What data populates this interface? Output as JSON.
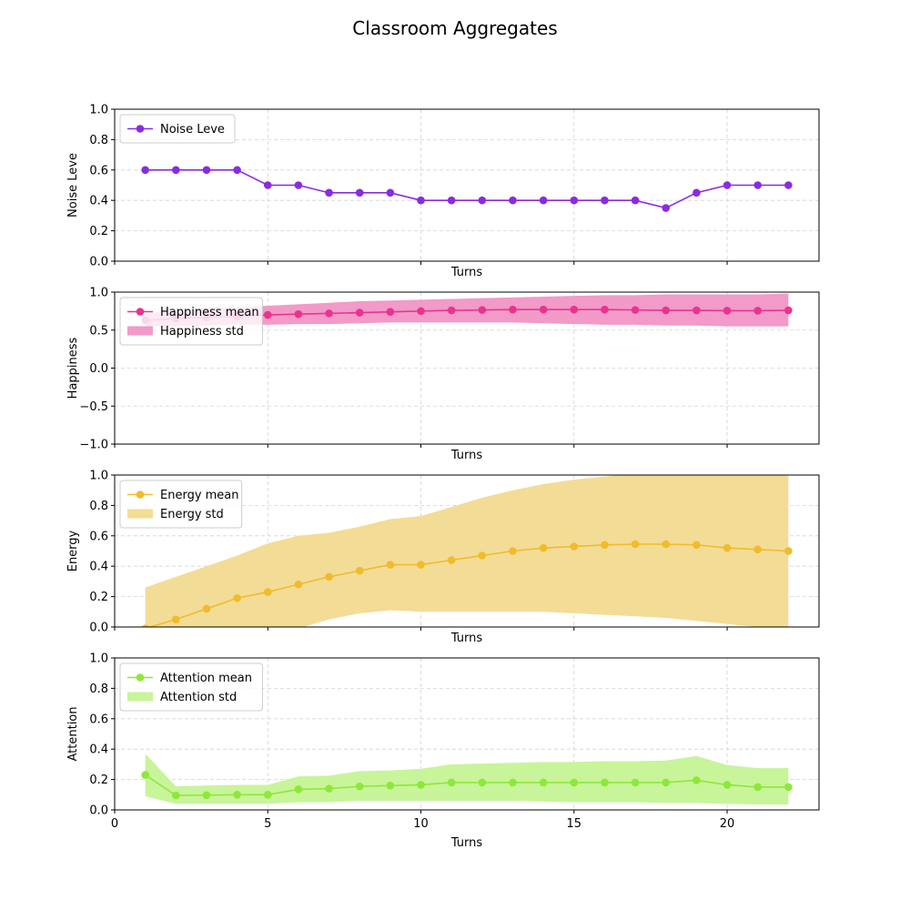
{
  "title": "Classroom Aggregates",
  "chart_data": [
    {
      "type": "line",
      "ylabel": "Noise Leve",
      "xlabel": "Turns",
      "xlim": [
        0,
        23
      ],
      "ylim": [
        0,
        1
      ],
      "yticks": [
        0.0,
        0.2,
        0.4,
        0.6,
        0.8,
        1.0
      ],
      "ytick_labels": [
        "0.0",
        "0.2",
        "0.4",
        "0.6",
        "0.8",
        "1.0"
      ],
      "xticks": [
        0,
        5,
        10,
        15,
        20
      ],
      "show_xtick_labels": false,
      "grid": true,
      "legend_position": "top-left",
      "color": "#8a2be2",
      "x": [
        1,
        2,
        3,
        4,
        5,
        6,
        7,
        8,
        9,
        10,
        11,
        12,
        13,
        14,
        15,
        16,
        17,
        18,
        19,
        20,
        21,
        22
      ],
      "series": [
        {
          "name": "Noise Leve",
          "kind": "line",
          "values": [
            0.6,
            0.6,
            0.6,
            0.6,
            0.5,
            0.5,
            0.45,
            0.45,
            0.45,
            0.4,
            0.4,
            0.4,
            0.4,
            0.4,
            0.4,
            0.4,
            0.4,
            0.35,
            0.45,
            0.5,
            0.5,
            0.5
          ]
        }
      ]
    },
    {
      "type": "line",
      "ylabel": "Happiness",
      "xlabel": "Turns",
      "xlim": [
        0,
        23
      ],
      "ylim": [
        -1,
        1
      ],
      "yticks": [
        -1.0,
        -0.5,
        0.0,
        0.5,
        1.0
      ],
      "ytick_labels": [
        "−1.0",
        "−0.5",
        "0.0",
        "0.5",
        "1.0"
      ],
      "xticks": [
        0,
        5,
        10,
        15,
        20
      ],
      "show_xtick_labels": false,
      "grid": true,
      "legend_position": "top-left",
      "color": "#e8348f",
      "band_color": "#f29ac8",
      "x": [
        1,
        2,
        3,
        4,
        5,
        6,
        7,
        8,
        9,
        10,
        11,
        12,
        13,
        14,
        15,
        16,
        17,
        18,
        19,
        20,
        21,
        22
      ],
      "series": [
        {
          "name": "Happiness mean",
          "kind": "line",
          "values": [
            0.63,
            0.65,
            0.67,
            0.68,
            0.7,
            0.71,
            0.72,
            0.73,
            0.74,
            0.75,
            0.76,
            0.765,
            0.77,
            0.77,
            0.77,
            0.77,
            0.765,
            0.76,
            0.76,
            0.755,
            0.755,
            0.76
          ]
        },
        {
          "name": "Happiness std",
          "kind": "band",
          "lower": [
            0.55,
            0.55,
            0.56,
            0.57,
            0.57,
            0.58,
            0.58,
            0.59,
            0.6,
            0.6,
            0.6,
            0.6,
            0.6,
            0.59,
            0.58,
            0.57,
            0.57,
            0.56,
            0.56,
            0.55,
            0.55,
            0.55
          ],
          "upper": [
            0.72,
            0.76,
            0.79,
            0.8,
            0.82,
            0.84,
            0.86,
            0.88,
            0.89,
            0.9,
            0.91,
            0.92,
            0.93,
            0.94,
            0.95,
            0.96,
            0.96,
            0.97,
            0.97,
            0.97,
            0.97,
            0.98
          ]
        }
      ]
    },
    {
      "type": "line",
      "ylabel": "Energy",
      "xlabel": "Turns",
      "xlim": [
        0,
        23
      ],
      "ylim": [
        0,
        1
      ],
      "yticks": [
        0.0,
        0.2,
        0.4,
        0.6,
        0.8,
        1.0
      ],
      "ytick_labels": [
        "0.0",
        "0.2",
        "0.4",
        "0.6",
        "0.8",
        "1.0"
      ],
      "xticks": [
        0,
        5,
        10,
        15,
        20
      ],
      "show_xtick_labels": false,
      "grid": true,
      "legend_position": "top-left",
      "color": "#f0bc2c",
      "band_color": "#f3dc96",
      "x": [
        1,
        2,
        3,
        4,
        5,
        6,
        7,
        8,
        9,
        10,
        11,
        12,
        13,
        14,
        15,
        16,
        17,
        18,
        19,
        20,
        21,
        22
      ],
      "series": [
        {
          "name": "Energy mean",
          "kind": "line",
          "values": [
            -0.01,
            0.05,
            0.12,
            0.19,
            0.23,
            0.28,
            0.33,
            0.37,
            0.41,
            0.41,
            0.44,
            0.47,
            0.5,
            0.52,
            0.53,
            0.54,
            0.545,
            0.545,
            0.54,
            0.52,
            0.51,
            0.5
          ]
        },
        {
          "name": "Energy std",
          "kind": "band",
          "lower": [
            -0.28,
            -0.22,
            -0.15,
            -0.09,
            -0.04,
            -0.01,
            0.05,
            0.09,
            0.11,
            0.1,
            0.1,
            0.1,
            0.1,
            0.1,
            0.09,
            0.08,
            0.07,
            0.06,
            0.04,
            0.02,
            0.0,
            -0.01
          ],
          "upper": [
            0.26,
            0.33,
            0.4,
            0.47,
            0.55,
            0.6,
            0.62,
            0.66,
            0.71,
            0.73,
            0.79,
            0.85,
            0.9,
            0.94,
            0.97,
            0.99,
            1.01,
            1.02,
            1.03,
            1.03,
            1.03,
            1.03
          ]
        }
      ]
    },
    {
      "type": "line",
      "ylabel": "Attention",
      "xlabel": "Turns",
      "xlim": [
        0,
        23
      ],
      "ylim": [
        0,
        1
      ],
      "yticks": [
        0.0,
        0.2,
        0.4,
        0.6,
        0.8,
        1.0
      ],
      "ytick_labels": [
        "0.0",
        "0.2",
        "0.4",
        "0.6",
        "0.8",
        "1.0"
      ],
      "xticks": [
        0,
        5,
        10,
        15,
        20
      ],
      "xtick_labels": [
        "0",
        "5",
        "10",
        "15",
        "20"
      ],
      "show_xtick_labels": true,
      "grid": true,
      "legend_position": "top-left",
      "color": "#8ee83a",
      "band_color": "#c8f49a",
      "x": [
        1,
        2,
        3,
        4,
        5,
        6,
        7,
        8,
        9,
        10,
        11,
        12,
        13,
        14,
        15,
        16,
        17,
        18,
        19,
        20,
        21,
        22
      ],
      "series": [
        {
          "name": "Attention mean",
          "kind": "line",
          "values": [
            0.23,
            0.095,
            0.097,
            0.1,
            0.1,
            0.135,
            0.14,
            0.155,
            0.16,
            0.165,
            0.18,
            0.18,
            0.18,
            0.18,
            0.18,
            0.18,
            0.18,
            0.18,
            0.195,
            0.165,
            0.15,
            0.15
          ]
        },
        {
          "name": "Attention std",
          "kind": "band",
          "lower": [
            0.09,
            0.04,
            0.04,
            0.04,
            0.04,
            0.05,
            0.05,
            0.06,
            0.06,
            0.06,
            0.06,
            0.06,
            0.06,
            0.055,
            0.05,
            0.05,
            0.05,
            0.045,
            0.045,
            0.04,
            0.035,
            0.035
          ],
          "upper": [
            0.37,
            0.155,
            0.16,
            0.165,
            0.165,
            0.22,
            0.225,
            0.255,
            0.26,
            0.27,
            0.3,
            0.305,
            0.31,
            0.315,
            0.315,
            0.32,
            0.32,
            0.325,
            0.355,
            0.295,
            0.275,
            0.275
          ]
        }
      ]
    }
  ]
}
